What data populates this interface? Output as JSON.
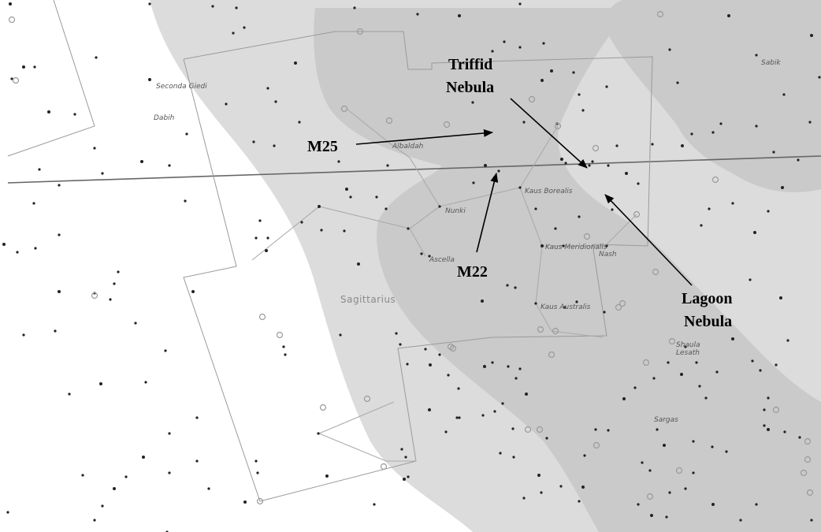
{
  "colors": {
    "milky_way_outer": "#dcdcdc",
    "milky_way_inner": "#cacaca",
    "star": "#222222",
    "boundary": "#9a9a9a",
    "arrow": "#000000"
  },
  "constellation": {
    "label": "Sagittarius"
  },
  "star_labels": [
    "Seconda Giedi",
    "Dabih",
    "Albaldah",
    "Nunki",
    "Kaus Borealis",
    "Ascella",
    "Kaus Meridionalis",
    "Nash",
    "Kaus Australis",
    "Shaula",
    "Lesath",
    "Sargas",
    "Sabik"
  ],
  "annotations": {
    "triffid": [
      "Triffid",
      "Nebula"
    ],
    "m25": "M25",
    "m22": "M22",
    "lagoon": [
      "Lagoon",
      "Nebula"
    ]
  }
}
